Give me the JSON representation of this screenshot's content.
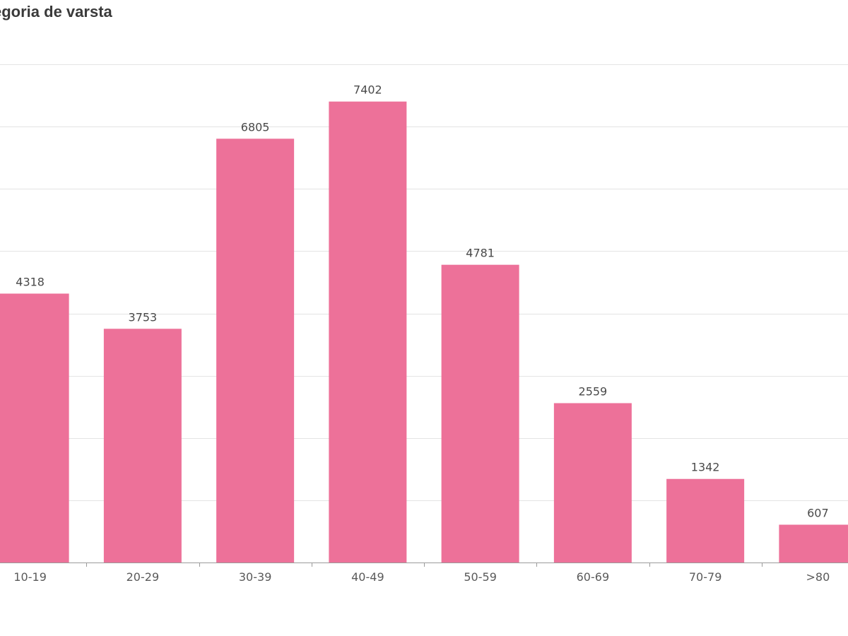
{
  "chart_data": {
    "type": "bar",
    "title": "egoria de varsta",
    "categories": [
      "10-19",
      "20-29",
      "30-39",
      "40-49",
      "50-59",
      "60-69",
      "70-79",
      ">80"
    ],
    "values": [
      4318,
      3753,
      6805,
      7402,
      4781,
      2559,
      1342,
      607
    ],
    "xlabel": "",
    "ylabel": "",
    "ylim": [
      0,
      8000
    ],
    "grid": true,
    "legend": "none",
    "bar_color": "#ed7199"
  }
}
